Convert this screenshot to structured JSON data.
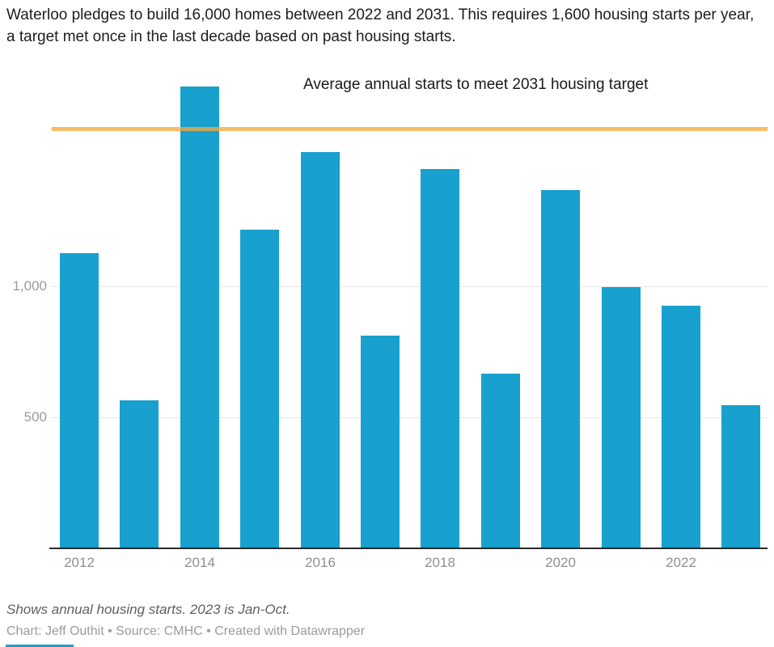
{
  "header": {
    "title": "Waterloo pledges to build 16,000 homes between 2022 and 2031. This requires 1,600 housing starts per year, a target met once in the last decade based on past housing starts."
  },
  "chart_data": {
    "type": "bar",
    "categories": [
      "2012",
      "2013",
      "2014",
      "2015",
      "2016",
      "2017",
      "2018",
      "2019",
      "2020",
      "2021",
      "2022",
      "2023"
    ],
    "values": [
      1125,
      565,
      1760,
      1215,
      1510,
      810,
      1445,
      665,
      1365,
      995,
      925,
      545
    ],
    "title": "Waterloo pledges to build 16,000 homes between 2022 and 2031. This requires 1,600 housing starts per year, a target met once in the last decade based on past housing starts.",
    "xlabel": "",
    "ylabel": "",
    "ylim": [
      0,
      1790
    ],
    "y_ticks": [
      500,
      1000
    ],
    "y_tick_labels": [
      "500",
      "1,000"
    ],
    "x_tick_labels": [
      "2012",
      "2014",
      "2016",
      "2018",
      "2020",
      "2022"
    ],
    "grid": "horizontal",
    "legend": "none",
    "bar_color": "#18a0ce",
    "target_line": {
      "value": 1600,
      "label": "Average annual starts to meet 2031 housing target",
      "color": "#f6ab40"
    }
  },
  "footer": {
    "note": "Shows annual housing starts. 2023 is Jan-Oct.",
    "credit": "Chart: Jeff Outhit • Source: CMHC • Created with Datawrapper"
  }
}
